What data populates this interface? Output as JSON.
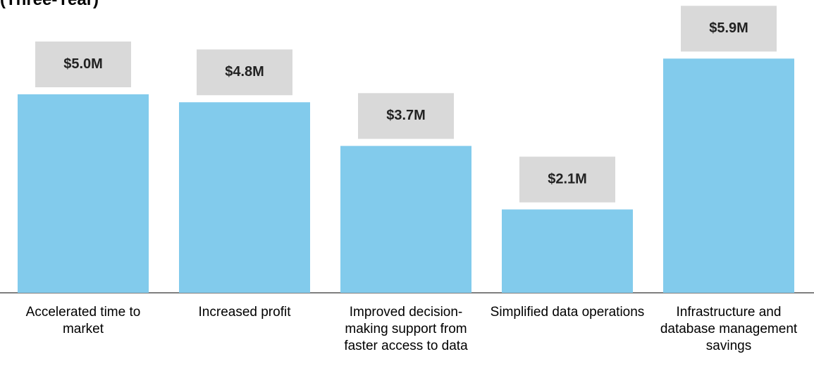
{
  "chart_data": {
    "type": "bar",
    "title": "(Three-Year)",
    "categories": [
      "Accelerated time to market",
      "Increased profit",
      "Improved decision-making support from faster access to data",
      "Simplified data operations",
      "Infrastructure and database management savings"
    ],
    "values": [
      5.0,
      4.8,
      3.7,
      2.1,
      5.9
    ],
    "value_labels": [
      "$5.0M",
      "$4.8M",
      "$3.7M",
      "$2.1M",
      "$5.9M"
    ],
    "color": "#82cbec"
  }
}
